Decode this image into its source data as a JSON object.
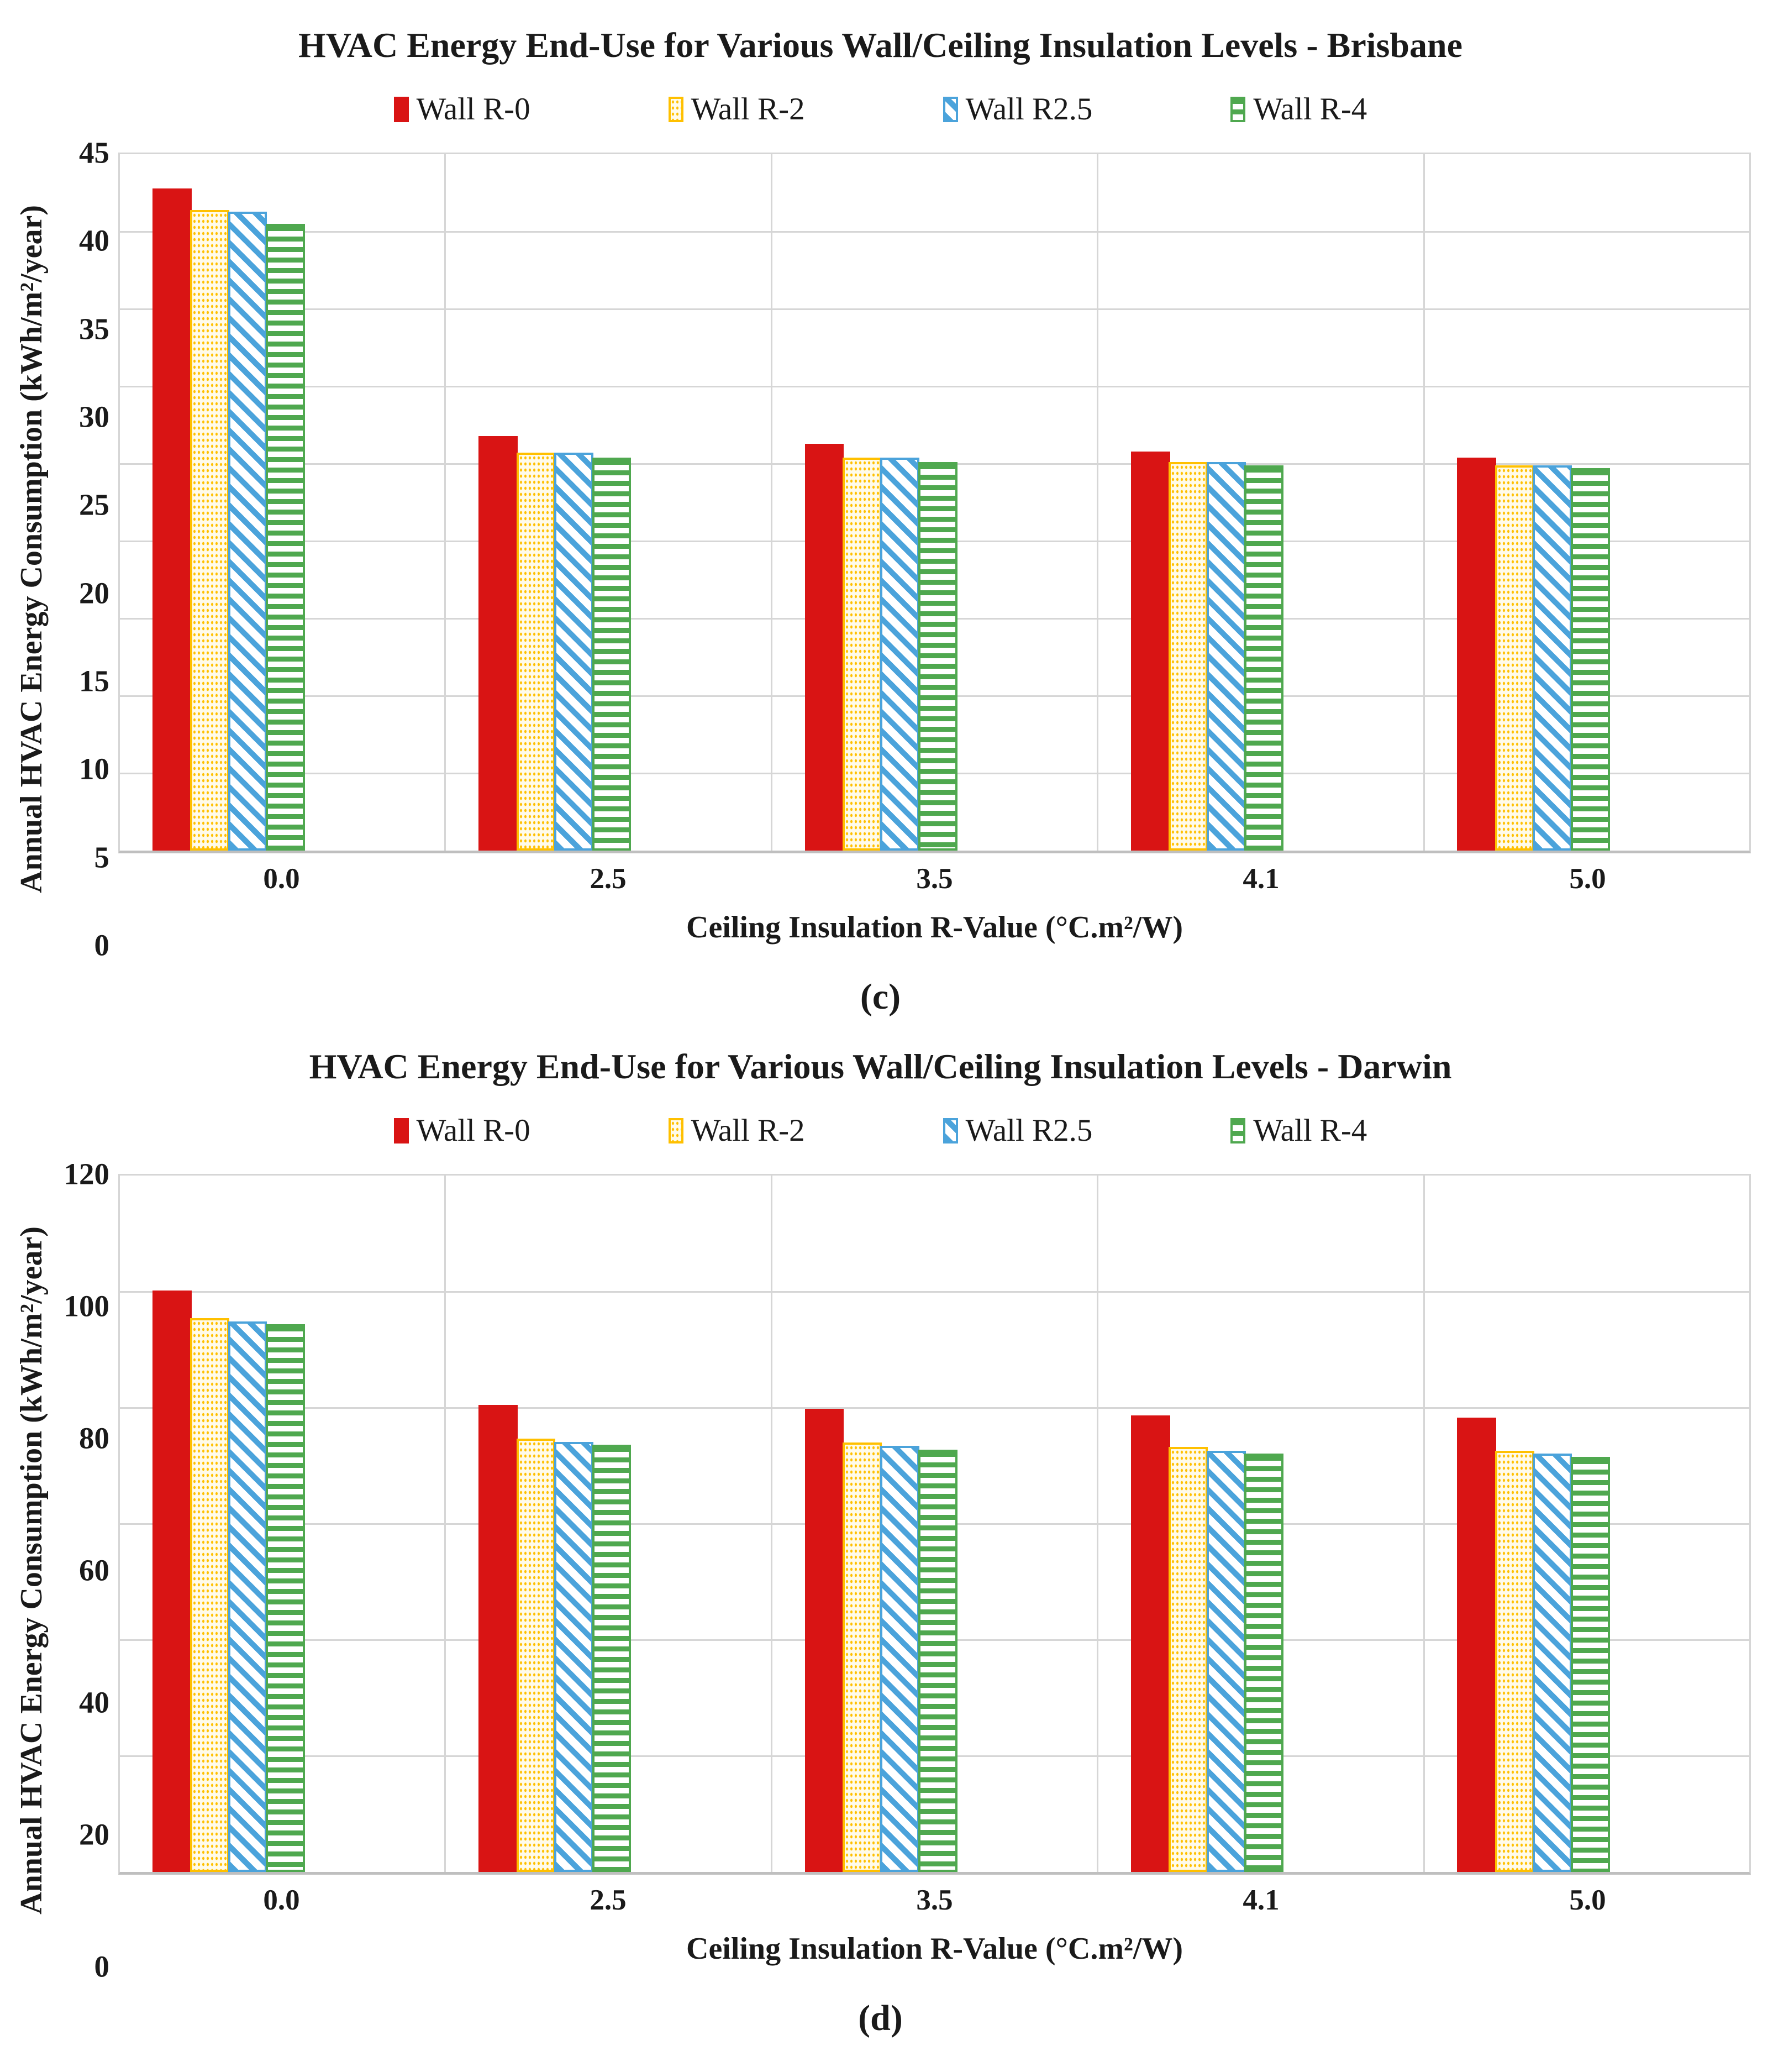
{
  "colors": {
    "red": "#D91414",
    "yellow": "#FFC000",
    "blue": "#4BA3DB",
    "green": "#4FA84F",
    "grid": "#D6D6D6",
    "axis": "#BFBFBF",
    "text": "#1A1A1A"
  },
  "chart_data": [
    {
      "type": "bar",
      "title": "HVAC Energy End-Use for Various Wall/Ceiling Insulation Levels - Brisbane",
      "panel_label": "(c)",
      "xlabel": "Ceiling Insulation R-Value (°C.m²/W)",
      "ylabel": "Annual HVAC Energy Consumption (kWh/m²/year)",
      "ymax": 45,
      "yticks": [
        45,
        40,
        35,
        30,
        25,
        20,
        15,
        10,
        5,
        0
      ],
      "grid": "on",
      "legend_position": "top",
      "categories": [
        "0.0",
        "2.5",
        "3.5",
        "4.1",
        "5.0"
      ],
      "series": [
        {
          "name": "Wall R-0",
          "color_key": "red",
          "pattern": "solid",
          "values": [
            42.8,
            26.8,
            26.3,
            25.8,
            25.4
          ]
        },
        {
          "name": "Wall R-2",
          "color_key": "yellow",
          "pattern": "dotted-vertical",
          "values": [
            41.4,
            25.7,
            25.4,
            25.1,
            24.9
          ]
        },
        {
          "name": "Wall R2.5",
          "color_key": "blue",
          "pattern": "diagonal-stripes",
          "values": [
            41.3,
            25.7,
            25.4,
            25.1,
            24.9
          ]
        },
        {
          "name": "Wall R-4",
          "color_key": "green",
          "pattern": "horizontal-lines",
          "values": [
            40.5,
            25.4,
            25.1,
            24.9,
            24.7
          ]
        }
      ]
    },
    {
      "type": "bar",
      "title": "HVAC Energy End-Use for Various Wall/Ceiling Insulation Levels - Darwin",
      "panel_label": "(d)",
      "xlabel": "Ceiling Insulation R-Value (°C.m²/W)",
      "ylabel": "Annual HVAC Energy Consumption (kWh/m²/year)",
      "ymax": 120,
      "yticks": [
        120,
        100,
        80,
        60,
        40,
        20,
        0
      ],
      "grid": "on",
      "legend_position": "top",
      "categories": [
        "0.0",
        "2.5",
        "3.5",
        "4.1",
        "5.0"
      ],
      "series": [
        {
          "name": "Wall R-0",
          "color_key": "red",
          "pattern": "solid",
          "values": [
            100.2,
            80.5,
            79.8,
            78.7,
            78.3
          ]
        },
        {
          "name": "Wall R-2",
          "color_key": "yellow",
          "pattern": "dotted-vertical",
          "values": [
            95.4,
            74.7,
            74.0,
            73.2,
            72.6
          ]
        },
        {
          "name": "Wall R2.5",
          "color_key": "blue",
          "pattern": "diagonal-stripes",
          "values": [
            94.9,
            74.1,
            73.4,
            72.6,
            72.1
          ]
        },
        {
          "name": "Wall R-4",
          "color_key": "green",
          "pattern": "horizontal-lines",
          "values": [
            94.4,
            73.6,
            72.8,
            72.1,
            71.5
          ]
        }
      ]
    }
  ]
}
